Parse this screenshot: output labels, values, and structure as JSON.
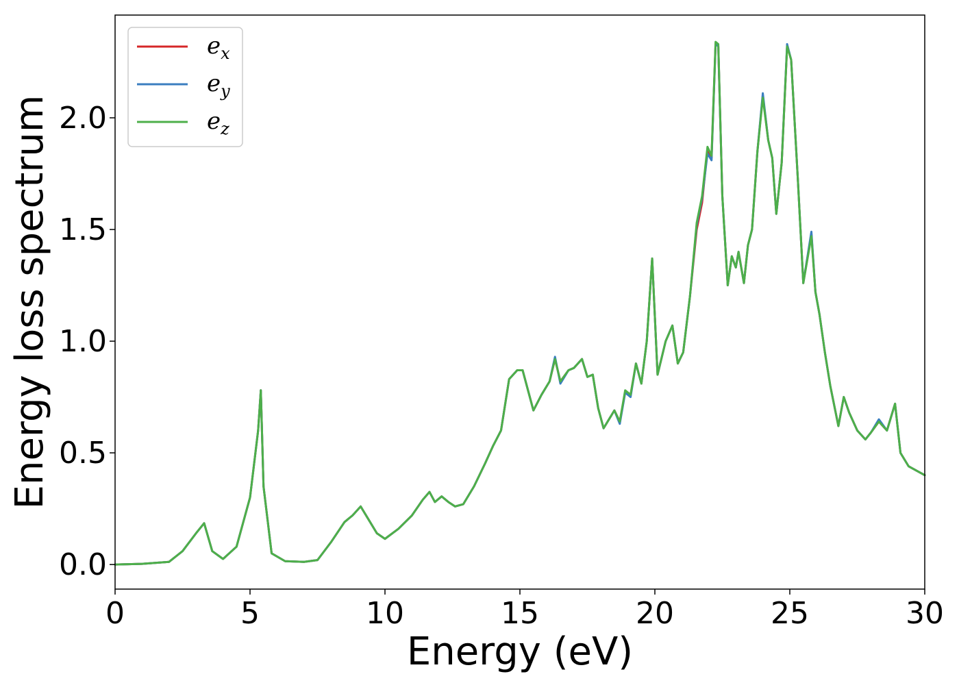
{
  "chart_data": {
    "type": "line",
    "title": "",
    "xlabel": "Energy (eV)",
    "ylabel": "Energy loss spectrum",
    "xlim": [
      0,
      30
    ],
    "ylim": [
      -0.11,
      2.46
    ],
    "xticks": [
      0,
      5,
      10,
      15,
      20,
      25,
      30
    ],
    "xtick_labels": [
      "0",
      "5",
      "10",
      "15",
      "20",
      "25",
      "30"
    ],
    "yticks": [
      0.0,
      0.5,
      1.0,
      1.5,
      2.0
    ],
    "ytick_labels": [
      "0.0",
      "0.5",
      "1.0",
      "1.5",
      "2.0"
    ],
    "grid": false,
    "legend_position": "top-left",
    "series": [
      {
        "name": "e_x",
        "legend_main": "e",
        "legend_sub": "x",
        "color": "#d62728",
        "x": [
          0,
          1,
          2,
          2.5,
          3.0,
          3.3,
          3.6,
          4.0,
          4.5,
          5.0,
          5.3,
          5.4,
          5.5,
          5.8,
          6.3,
          7.0,
          7.5,
          8.0,
          8.5,
          8.8,
          9.1,
          9.4,
          9.7,
          10.0,
          10.5,
          11.0,
          11.4,
          11.65,
          11.85,
          12.1,
          12.35,
          12.6,
          12.9,
          13.3,
          13.7,
          14.0,
          14.3,
          14.6,
          14.9,
          15.1,
          15.3,
          15.5,
          15.8,
          16.1,
          16.3,
          16.5,
          16.8,
          17.0,
          17.3,
          17.5,
          17.7,
          17.9,
          18.1,
          18.3,
          18.5,
          18.7,
          18.9,
          19.1,
          19.3,
          19.5,
          19.7,
          19.9,
          20.1,
          20.4,
          20.65,
          20.85,
          21.05,
          21.3,
          21.55,
          21.75,
          21.95,
          22.1,
          22.25,
          22.35,
          22.5,
          22.7,
          22.85,
          23.0,
          23.1,
          23.3,
          23.45,
          23.6,
          23.8,
          24.0,
          24.2,
          24.35,
          24.5,
          24.7,
          24.9,
          25.05,
          25.3,
          25.5,
          25.8,
          25.95,
          26.1,
          26.3,
          26.5,
          26.8,
          27.0,
          27.2,
          27.5,
          27.8,
          28.0,
          28.3,
          28.6,
          28.9,
          29.1,
          29.4,
          29.7,
          30.0
        ],
        "y": [
          0.0,
          0.003,
          0.012,
          0.06,
          0.14,
          0.185,
          0.06,
          0.025,
          0.08,
          0.3,
          0.6,
          0.78,
          0.35,
          0.05,
          0.015,
          0.012,
          0.02,
          0.1,
          0.19,
          0.22,
          0.26,
          0.2,
          0.14,
          0.115,
          0.16,
          0.22,
          0.29,
          0.325,
          0.28,
          0.305,
          0.28,
          0.26,
          0.27,
          0.35,
          0.45,
          0.53,
          0.6,
          0.83,
          0.87,
          0.87,
          0.78,
          0.69,
          0.76,
          0.82,
          0.92,
          0.82,
          0.87,
          0.88,
          0.92,
          0.84,
          0.85,
          0.7,
          0.61,
          0.65,
          0.69,
          0.64,
          0.77,
          0.76,
          0.9,
          0.81,
          1.0,
          1.37,
          0.85,
          1.0,
          1.07,
          0.9,
          0.95,
          1.2,
          1.5,
          1.62,
          1.86,
          1.82,
          2.33,
          2.32,
          1.65,
          1.25,
          1.38,
          1.33,
          1.4,
          1.26,
          1.43,
          1.5,
          1.85,
          2.1,
          1.9,
          1.82,
          1.57,
          1.8,
          2.32,
          2.26,
          1.72,
          1.26,
          1.48,
          1.22,
          1.12,
          0.95,
          0.8,
          0.62,
          0.75,
          0.68,
          0.6,
          0.56,
          0.59,
          0.64,
          0.6,
          0.72,
          0.5,
          0.44,
          0.42,
          0.4
        ]
      },
      {
        "name": "e_y",
        "legend_main": "e",
        "legend_sub": "y",
        "color": "#3a7ebf",
        "x": [
          0,
          1,
          2,
          2.5,
          3.0,
          3.3,
          3.6,
          4.0,
          4.5,
          5.0,
          5.3,
          5.4,
          5.5,
          5.8,
          6.3,
          7.0,
          7.5,
          8.0,
          8.5,
          8.8,
          9.1,
          9.4,
          9.7,
          10.0,
          10.5,
          11.0,
          11.4,
          11.65,
          11.85,
          12.1,
          12.35,
          12.6,
          12.9,
          13.3,
          13.7,
          14.0,
          14.3,
          14.6,
          14.9,
          15.1,
          15.3,
          15.5,
          15.8,
          16.1,
          16.3,
          16.5,
          16.8,
          17.0,
          17.3,
          17.5,
          17.7,
          17.9,
          18.1,
          18.3,
          18.5,
          18.7,
          18.9,
          19.1,
          19.3,
          19.5,
          19.7,
          19.9,
          20.1,
          20.4,
          20.65,
          20.85,
          21.05,
          21.3,
          21.55,
          21.75,
          21.95,
          22.1,
          22.25,
          22.35,
          22.5,
          22.7,
          22.85,
          23.0,
          23.1,
          23.3,
          23.45,
          23.6,
          23.8,
          24.0,
          24.2,
          24.35,
          24.5,
          24.7,
          24.9,
          25.05,
          25.3,
          25.5,
          25.8,
          25.95,
          26.1,
          26.3,
          26.5,
          26.8,
          27.0,
          27.2,
          27.5,
          27.8,
          28.0,
          28.3,
          28.6,
          28.9,
          29.1,
          29.4,
          29.7,
          30.0
        ],
        "y": [
          0.0,
          0.003,
          0.012,
          0.06,
          0.14,
          0.185,
          0.06,
          0.025,
          0.08,
          0.3,
          0.6,
          0.78,
          0.35,
          0.05,
          0.015,
          0.012,
          0.02,
          0.1,
          0.19,
          0.22,
          0.26,
          0.2,
          0.14,
          0.115,
          0.16,
          0.22,
          0.29,
          0.325,
          0.28,
          0.305,
          0.28,
          0.26,
          0.27,
          0.35,
          0.45,
          0.53,
          0.6,
          0.83,
          0.87,
          0.87,
          0.78,
          0.69,
          0.76,
          0.82,
          0.93,
          0.81,
          0.87,
          0.88,
          0.92,
          0.84,
          0.85,
          0.7,
          0.61,
          0.65,
          0.69,
          0.63,
          0.77,
          0.75,
          0.9,
          0.81,
          1.0,
          1.37,
          0.85,
          1.0,
          1.07,
          0.9,
          0.95,
          1.2,
          1.52,
          1.64,
          1.84,
          1.81,
          2.33,
          2.32,
          1.65,
          1.25,
          1.38,
          1.33,
          1.4,
          1.26,
          1.43,
          1.5,
          1.85,
          2.11,
          1.9,
          1.82,
          1.57,
          1.8,
          2.33,
          2.26,
          1.72,
          1.26,
          1.49,
          1.22,
          1.12,
          0.95,
          0.8,
          0.62,
          0.75,
          0.68,
          0.6,
          0.56,
          0.59,
          0.65,
          0.6,
          0.72,
          0.5,
          0.44,
          0.42,
          0.4
        ]
      },
      {
        "name": "e_z",
        "legend_main": "e",
        "legend_sub": "z",
        "color": "#4daf4a",
        "x": [
          0,
          1,
          2,
          2.5,
          3.0,
          3.3,
          3.6,
          4.0,
          4.5,
          5.0,
          5.3,
          5.4,
          5.5,
          5.8,
          6.3,
          7.0,
          7.5,
          8.0,
          8.5,
          8.8,
          9.1,
          9.4,
          9.7,
          10.0,
          10.5,
          11.0,
          11.4,
          11.65,
          11.85,
          12.1,
          12.35,
          12.6,
          12.9,
          13.3,
          13.7,
          14.0,
          14.3,
          14.6,
          14.9,
          15.1,
          15.3,
          15.5,
          15.8,
          16.1,
          16.3,
          16.5,
          16.8,
          17.0,
          17.3,
          17.5,
          17.7,
          17.9,
          18.1,
          18.3,
          18.5,
          18.7,
          18.9,
          19.1,
          19.3,
          19.5,
          19.7,
          19.9,
          20.1,
          20.4,
          20.65,
          20.85,
          21.05,
          21.3,
          21.55,
          21.75,
          21.95,
          22.1,
          22.25,
          22.35,
          22.5,
          22.7,
          22.85,
          23.0,
          23.1,
          23.3,
          23.45,
          23.6,
          23.8,
          24.0,
          24.2,
          24.35,
          24.5,
          24.7,
          24.9,
          25.05,
          25.3,
          25.5,
          25.8,
          25.95,
          26.1,
          26.3,
          26.5,
          26.8,
          27.0,
          27.2,
          27.5,
          27.8,
          28.0,
          28.3,
          28.6,
          28.9,
          29.1,
          29.4,
          29.7,
          30.0
        ],
        "y": [
          0.0,
          0.003,
          0.012,
          0.06,
          0.14,
          0.185,
          0.06,
          0.025,
          0.08,
          0.3,
          0.6,
          0.78,
          0.35,
          0.05,
          0.015,
          0.012,
          0.02,
          0.1,
          0.19,
          0.22,
          0.26,
          0.2,
          0.14,
          0.115,
          0.16,
          0.22,
          0.29,
          0.325,
          0.28,
          0.305,
          0.28,
          0.26,
          0.27,
          0.35,
          0.45,
          0.53,
          0.6,
          0.83,
          0.87,
          0.87,
          0.78,
          0.69,
          0.76,
          0.82,
          0.92,
          0.82,
          0.87,
          0.88,
          0.92,
          0.84,
          0.85,
          0.7,
          0.61,
          0.65,
          0.69,
          0.64,
          0.78,
          0.76,
          0.9,
          0.81,
          1.0,
          1.37,
          0.85,
          1.0,
          1.07,
          0.9,
          0.95,
          1.2,
          1.53,
          1.65,
          1.87,
          1.83,
          2.34,
          2.33,
          1.65,
          1.25,
          1.38,
          1.33,
          1.4,
          1.26,
          1.43,
          1.5,
          1.85,
          2.09,
          1.9,
          1.82,
          1.57,
          1.8,
          2.32,
          2.26,
          1.72,
          1.26,
          1.47,
          1.22,
          1.12,
          0.95,
          0.8,
          0.62,
          0.75,
          0.68,
          0.6,
          0.56,
          0.59,
          0.64,
          0.6,
          0.72,
          0.5,
          0.44,
          0.42,
          0.4
        ]
      }
    ]
  }
}
